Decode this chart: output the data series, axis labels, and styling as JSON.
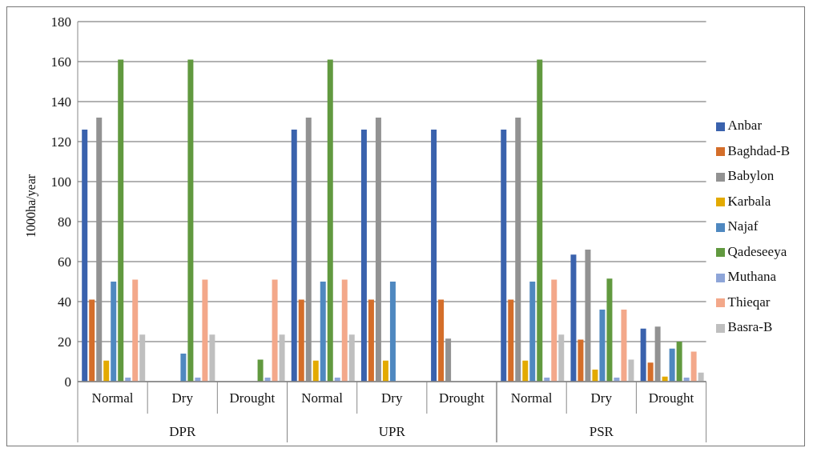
{
  "chart_data": {
    "type": "bar",
    "ylabel": "1000ha/year",
    "categories": [
      "Normal",
      "Dry",
      "Drought",
      "Normal",
      "Dry",
      "Drought",
      "Normal",
      "Dry",
      "Drought"
    ],
    "annotations": [
      "DPR",
      "UPR",
      "PSR"
    ],
    "series": [
      {
        "name": "Anbar",
        "color": "#3a62ad",
        "values": [
          126,
          0,
          0,
          126,
          126,
          126,
          126,
          63.5,
          26.5
        ]
      },
      {
        "name": "Baghdad-B",
        "color": "#d46e2a",
        "values": [
          41,
          0,
          0,
          41,
          41,
          41,
          41,
          21,
          9.5
        ]
      },
      {
        "name": "Babylon",
        "color": "#929292",
        "values": [
          132,
          0,
          0,
          132,
          132,
          21.5,
          132,
          66,
          27.5
        ]
      },
      {
        "name": "Karbala",
        "color": "#e3aa00",
        "values": [
          10.5,
          0,
          0,
          10.5,
          10.5,
          0,
          10.5,
          6,
          2.5
        ]
      },
      {
        "name": "Najaf",
        "color": "#4f88c0",
        "values": [
          50,
          14,
          0,
          50,
          50,
          0,
          50,
          36,
          16.5
        ]
      },
      {
        "name": "Qadeseeya",
        "color": "#61993f",
        "values": [
          161,
          161,
          11,
          161,
          0,
          0,
          161,
          51.5,
          20
        ]
      },
      {
        "name": "Muthana",
        "color": "#8ea5d8",
        "values": [
          2,
          2,
          2,
          2,
          0,
          0,
          2,
          2,
          2
        ]
      },
      {
        "name": "Thieqar",
        "color": "#f3a88a",
        "values": [
          51,
          51,
          51,
          51,
          0,
          0,
          51,
          36,
          15
        ]
      },
      {
        "name": "Basra-B",
        "color": "#bfbfbf",
        "values": [
          23.5,
          23.5,
          23.5,
          23.5,
          0,
          0,
          23.5,
          11,
          4.5
        ]
      }
    ],
    "ylim": [
      0,
      180
    ],
    "yticks": [
      0,
      20,
      40,
      60,
      80,
      100,
      120,
      140,
      160,
      180
    ],
    "grid": "y",
    "legend": "right"
  }
}
